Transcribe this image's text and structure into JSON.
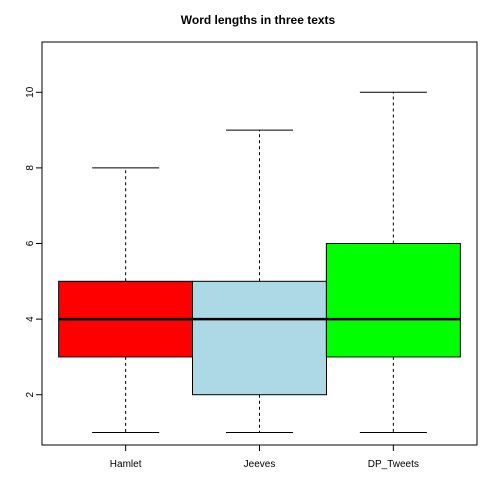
{
  "chart_data": {
    "type": "boxplot",
    "title": "Word lengths in three texts",
    "xlabel": "",
    "ylabel": "",
    "ylim": [
      0.67,
      11.33
    ],
    "y_ticks": [
      2,
      4,
      6,
      8,
      10
    ],
    "grid": false,
    "legend": "none",
    "categories": [
      "Hamlet",
      "Jeeves",
      "DP_Tweets"
    ],
    "series": [
      {
        "min": 1,
        "q1": 3,
        "median": 4,
        "q3": 5,
        "max": 8,
        "color": "#ff0000"
      },
      {
        "min": 1,
        "q1": 2,
        "median": 4,
        "q3": 5,
        "max": 9,
        "color": "#add8e6"
      },
      {
        "min": 1,
        "q1": 3,
        "median": 4,
        "q3": 6,
        "max": 10,
        "color": "#00ff00"
      }
    ]
  }
}
